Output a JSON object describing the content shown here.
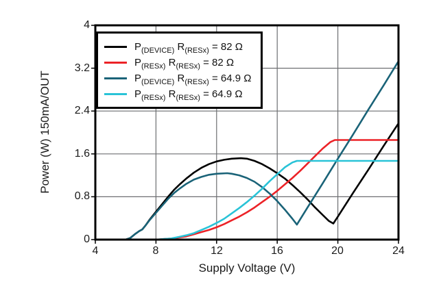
{
  "chart_data": {
    "type": "line",
    "title": "",
    "xlabel": "Supply Voltage (V)",
    "ylabel": "Power (W) 150mA/OUT",
    "xlim": [
      4,
      24
    ],
    "ylim": [
      0,
      4
    ],
    "grid": true,
    "legend_position": "top-left",
    "grid_color": "#6d6e71",
    "frame_color": "#000000",
    "background_color": "#ffffff",
    "xtick_values": [
      4,
      8,
      12,
      16,
      20,
      24
    ],
    "xtick_labels": [
      "4",
      "8",
      "12",
      "16",
      "20",
      "24"
    ],
    "ytick_values": [
      0,
      0.8,
      1.6,
      2.4,
      3.2,
      4
    ],
    "ytick_labels": [
      "0",
      "0.8",
      "1.6",
      "2.4",
      "3.2",
      "4"
    ],
    "series": [
      {
        "name": "P(DEVICE) R(RESx) = 82 Ω",
        "color": "#000000",
        "legend": {
          "sym": "P",
          "sym_sub": "(DEVICE)",
          "res": "R",
          "res_sub": "(RESx)",
          "eq": "= 82 Ω"
        },
        "points": [
          [
            6.0,
            0
          ],
          [
            6.3,
            0.03
          ],
          [
            6.6,
            0.1
          ],
          [
            6.9,
            0.16
          ],
          [
            7.1,
            0.19
          ],
          [
            7.3,
            0.26
          ],
          [
            7.6,
            0.38
          ],
          [
            8.0,
            0.52
          ],
          [
            8.4,
            0.66
          ],
          [
            8.8,
            0.8
          ],
          [
            9.2,
            0.93
          ],
          [
            9.6,
            1.04
          ],
          [
            10.0,
            1.14
          ],
          [
            10.5,
            1.25
          ],
          [
            11.0,
            1.34
          ],
          [
            11.5,
            1.41
          ],
          [
            12.0,
            1.46
          ],
          [
            12.5,
            1.49
          ],
          [
            13.0,
            1.51
          ],
          [
            13.6,
            1.52
          ],
          [
            14.0,
            1.51
          ],
          [
            14.5,
            1.47
          ],
          [
            15.0,
            1.41
          ],
          [
            15.5,
            1.33
          ],
          [
            16.0,
            1.24
          ],
          [
            16.5,
            1.14
          ],
          [
            17.0,
            1.02
          ],
          [
            17.5,
            0.89
          ],
          [
            18.0,
            0.75
          ],
          [
            18.5,
            0.6
          ],
          [
            19.0,
            0.46
          ],
          [
            19.4,
            0.35
          ],
          [
            19.7,
            0.3
          ],
          [
            20.0,
            0.43
          ],
          [
            21.0,
            0.87
          ],
          [
            22.0,
            1.3
          ],
          [
            23.0,
            1.74
          ],
          [
            24.0,
            2.17
          ]
        ]
      },
      {
        "name": "P(RESx) R(RESx) = 82 Ω",
        "color": "#ec2227",
        "legend": {
          "sym": "P",
          "sym_sub": "(RESx)",
          "res": "R",
          "res_sub": "(RESx)",
          "eq": "= 82 Ω"
        },
        "points": [
          [
            8.1,
            0
          ],
          [
            8.5,
            0.01
          ],
          [
            9.0,
            0.02
          ],
          [
            9.5,
            0.04
          ],
          [
            10.0,
            0.06
          ],
          [
            10.5,
            0.1
          ],
          [
            11.0,
            0.14
          ],
          [
            11.5,
            0.18
          ],
          [
            12.0,
            0.23
          ],
          [
            12.5,
            0.29
          ],
          [
            13.0,
            0.36
          ],
          [
            13.5,
            0.43
          ],
          [
            14.0,
            0.51
          ],
          [
            14.5,
            0.6
          ],
          [
            15.0,
            0.7
          ],
          [
            15.5,
            0.8
          ],
          [
            16.0,
            0.91
          ],
          [
            16.5,
            1.03
          ],
          [
            17.0,
            1.15
          ],
          [
            17.5,
            1.28
          ],
          [
            18.0,
            1.42
          ],
          [
            18.5,
            1.56
          ],
          [
            19.0,
            1.7
          ],
          [
            19.5,
            1.82
          ],
          [
            19.8,
            1.86
          ],
          [
            24.0,
            1.86
          ]
        ]
      },
      {
        "name": "P(DEVICE) R(RESx) = 64.9 Ω",
        "color": "#1a6378",
        "legend": {
          "sym": "P",
          "sym_sub": "(DEVICE)",
          "res": "R",
          "res_sub": "(RESx)",
          "eq": "= 64.9 Ω"
        },
        "points": [
          [
            6.0,
            0
          ],
          [
            6.3,
            0.03
          ],
          [
            6.6,
            0.1
          ],
          [
            6.9,
            0.16
          ],
          [
            7.1,
            0.19
          ],
          [
            7.3,
            0.26
          ],
          [
            7.6,
            0.37
          ],
          [
            8.0,
            0.5
          ],
          [
            8.4,
            0.63
          ],
          [
            8.8,
            0.76
          ],
          [
            9.2,
            0.87
          ],
          [
            9.6,
            0.96
          ],
          [
            10.0,
            1.04
          ],
          [
            10.5,
            1.12
          ],
          [
            11.0,
            1.17
          ],
          [
            11.5,
            1.21
          ],
          [
            12.0,
            1.23
          ],
          [
            12.7,
            1.24
          ],
          [
            13.0,
            1.23
          ],
          [
            13.5,
            1.2
          ],
          [
            14.0,
            1.15
          ],
          [
            14.5,
            1.08
          ],
          [
            15.0,
            0.98
          ],
          [
            15.5,
            0.86
          ],
          [
            16.0,
            0.72
          ],
          [
            16.5,
            0.56
          ],
          [
            17.0,
            0.39
          ],
          [
            17.3,
            0.28
          ],
          [
            18.0,
            0.6
          ],
          [
            19.0,
            1.05
          ],
          [
            20.0,
            1.51
          ],
          [
            21.0,
            1.96
          ],
          [
            22.0,
            2.42
          ],
          [
            23.0,
            2.87
          ],
          [
            24.0,
            3.33
          ]
        ]
      },
      {
        "name": "P(RESx) R(RESx) = 64.9 Ω",
        "color": "#29c3d7",
        "legend": {
          "sym": "P",
          "sym_sub": "(RESx)",
          "res": "R",
          "res_sub": "(RESx)",
          "eq": "= 64.9 Ω"
        },
        "points": [
          [
            8.0,
            0
          ],
          [
            8.5,
            0.01
          ],
          [
            9.0,
            0.02
          ],
          [
            9.5,
            0.05
          ],
          [
            10.0,
            0.08
          ],
          [
            10.5,
            0.12
          ],
          [
            11.0,
            0.18
          ],
          [
            11.5,
            0.24
          ],
          [
            12.0,
            0.31
          ],
          [
            12.5,
            0.39
          ],
          [
            13.0,
            0.49
          ],
          [
            13.5,
            0.59
          ],
          [
            14.0,
            0.7
          ],
          [
            14.5,
            0.82
          ],
          [
            15.0,
            0.95
          ],
          [
            15.5,
            1.09
          ],
          [
            16.0,
            1.22
          ],
          [
            16.5,
            1.35
          ],
          [
            17.0,
            1.44
          ],
          [
            17.3,
            1.47
          ],
          [
            24.0,
            1.47
          ]
        ]
      }
    ]
  }
}
